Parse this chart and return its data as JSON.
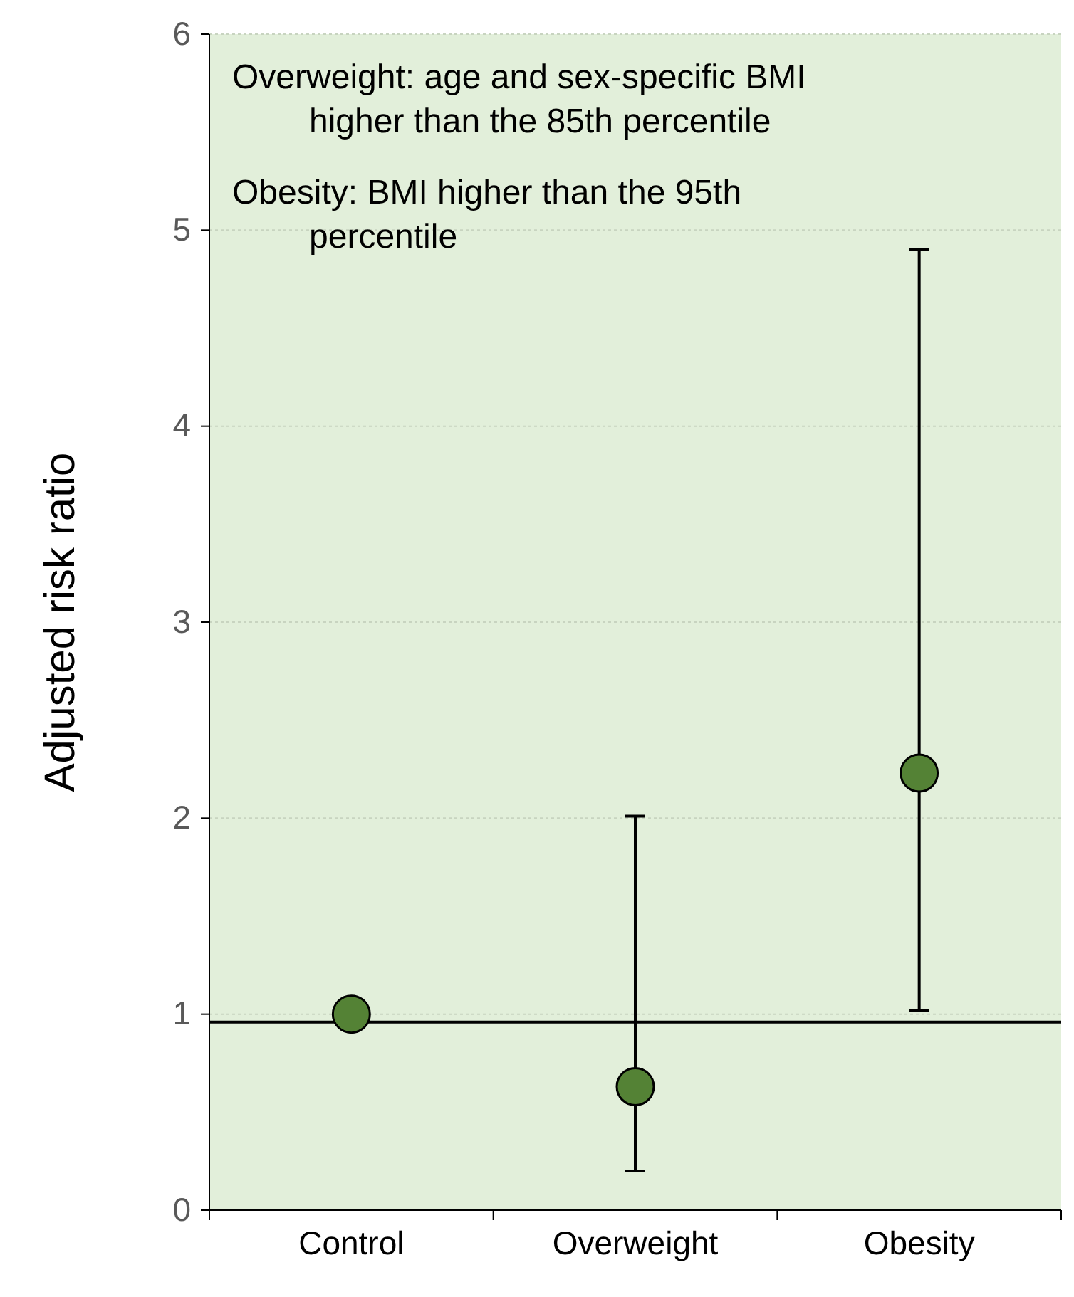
{
  "chart_data": {
    "type": "scatter",
    "ylabel": "Adjusted risk ratio",
    "categories": [
      "Control",
      "Overweight",
      "Obesity"
    ],
    "series": [
      {
        "color": "#548235",
        "values": [
          1.0,
          0.63,
          2.23
        ],
        "errors": [
          null,
          [
            0.2,
            2.01
          ],
          [
            1.02,
            4.9
          ]
        ]
      }
    ],
    "ylim": [
      0,
      6
    ],
    "yticks": [
      0,
      1,
      2,
      3,
      4,
      5,
      6
    ],
    "grid": "y",
    "marker": "circle",
    "ref_lines": [
      {
        "axis": "y",
        "value": 0.96
      }
    ],
    "annotations": [
      "Overweight: age and sex-specific BMI higher than the 85th percentile",
      "Obesity: BMI higher than the 95th percentile"
    ]
  }
}
